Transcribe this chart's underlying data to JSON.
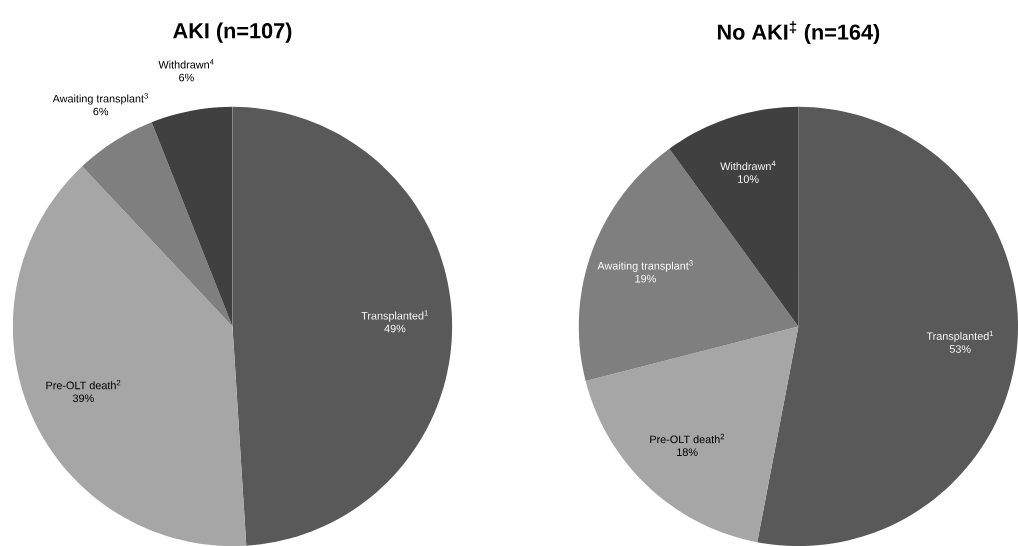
{
  "chart_data": [
    {
      "type": "pie",
      "title": "AKI (n=107)",
      "categories": [
        "Transplanted$^{1}$",
        "Pre-OLT death$^{2}$",
        "Awaiting transplant$^{3}$",
        "Withdrawn$^{4}$"
      ],
      "values": [
        49,
        39,
        6,
        6
      ],
      "value_labels": [
        "49%",
        "39%",
        "6%",
        "6%"
      ],
      "colors": [
        "#595959",
        "#a6a6a6",
        "#7f7f7f",
        "#404040"
      ]
    },
    {
      "type": "pie",
      "title": "No AKI$^{‡}$ (n=164)",
      "categories": [
        "Transplanted$^{1}$",
        "Pre-OLT death$^{2}$",
        "Awaiting transplant$^{3}$",
        "Withdrawn$^{4}$"
      ],
      "values": [
        53,
        18,
        19,
        10
      ],
      "value_labels": [
        "53%",
        "18%",
        "19%",
        "10%"
      ],
      "colors": [
        "#595959",
        "#a6a6a6",
        "#7f7f7f",
        "#404040"
      ]
    }
  ]
}
